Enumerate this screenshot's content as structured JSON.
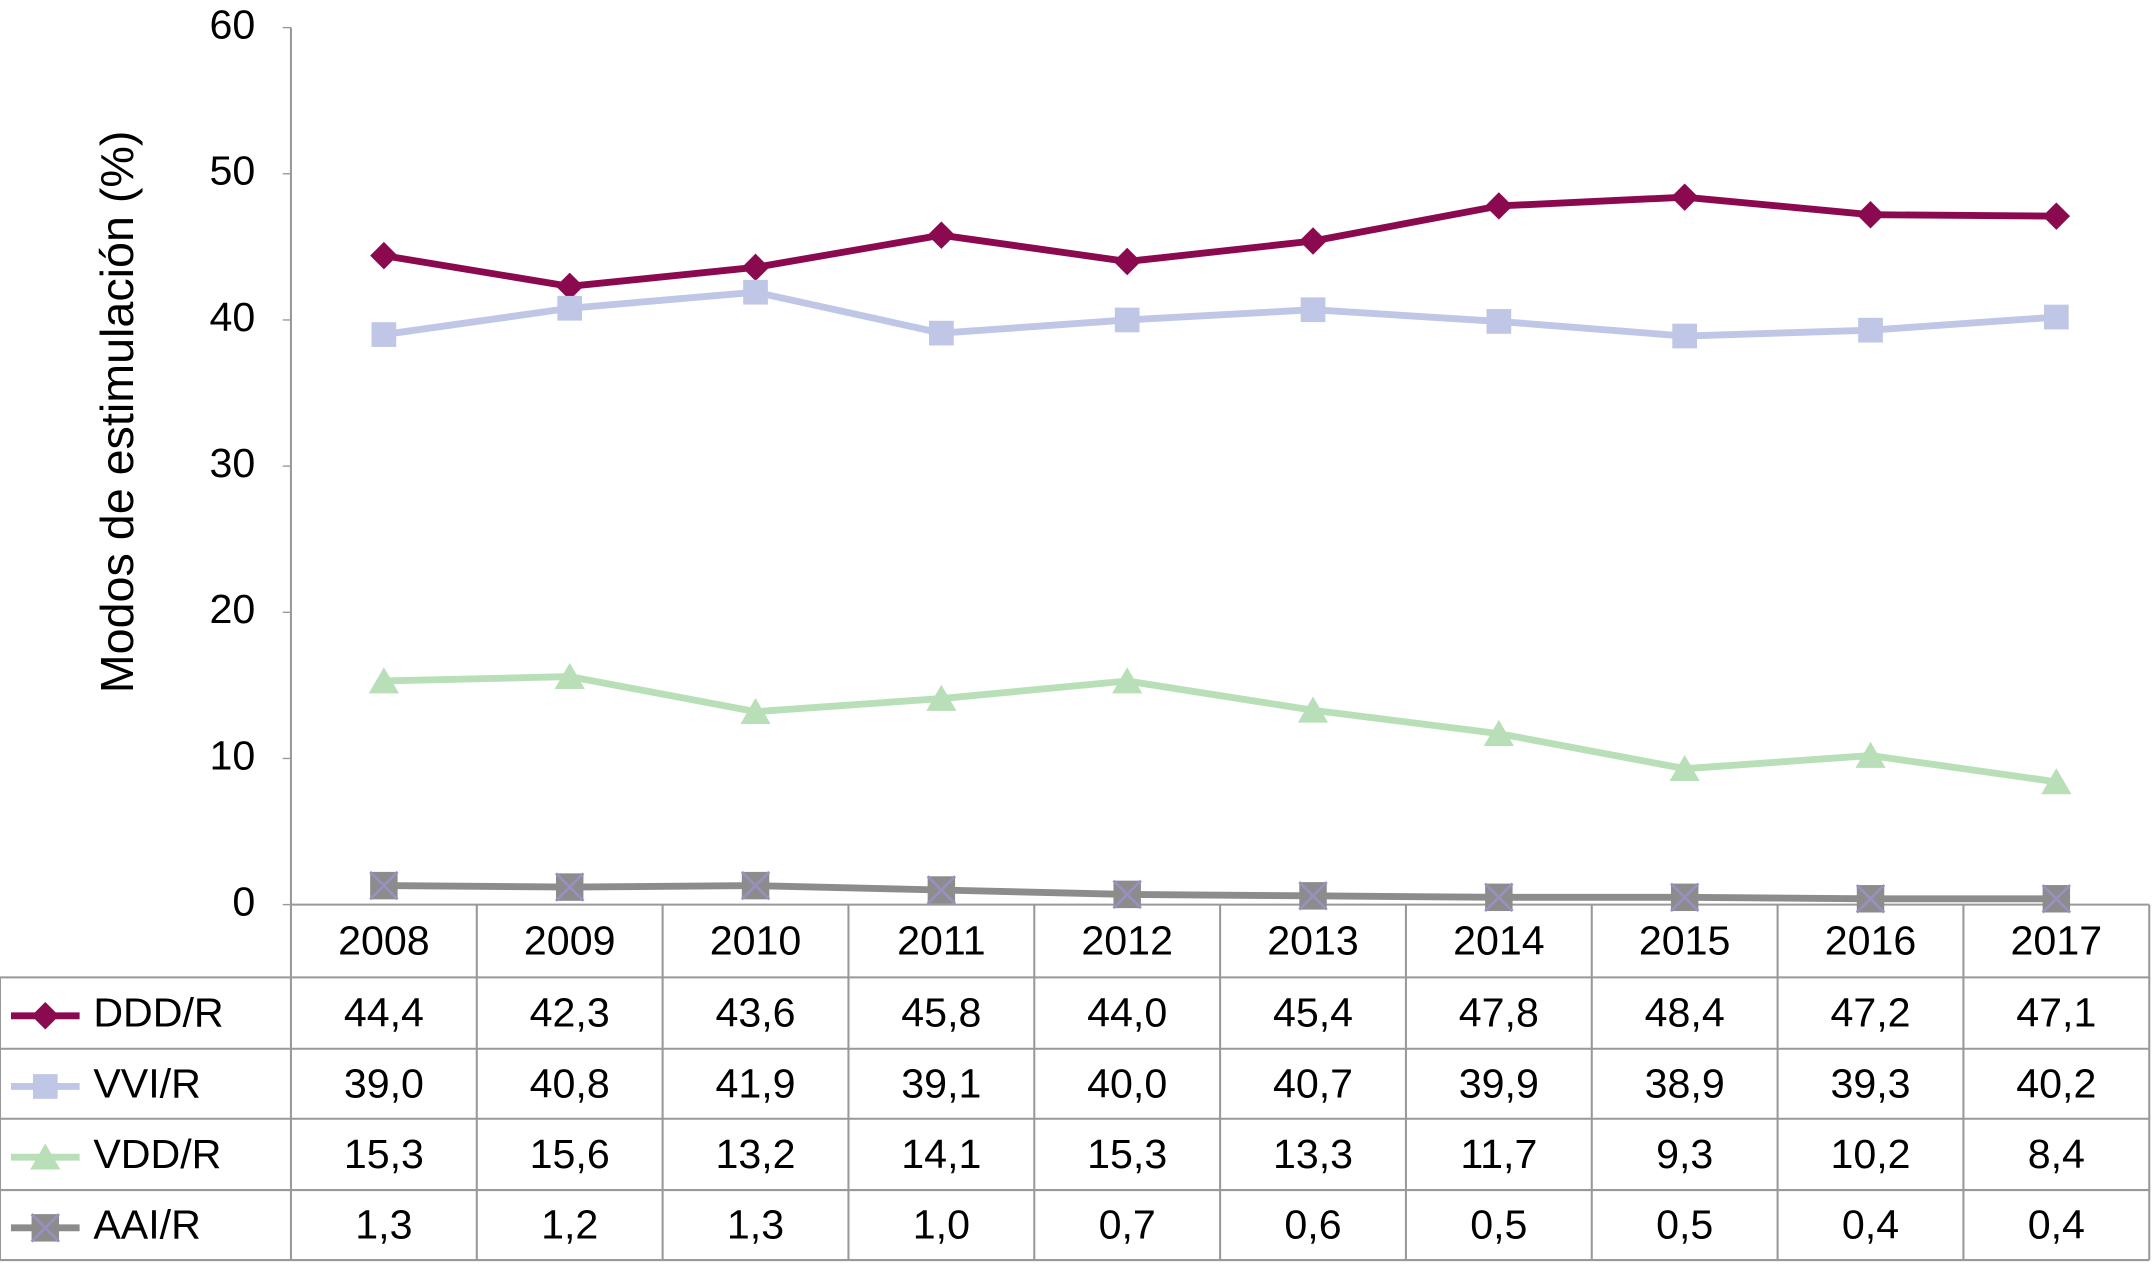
{
  "chart_data": {
    "type": "line",
    "y_label": "Modos de estimulación (%)",
    "categories": [
      "2008",
      "2009",
      "2010",
      "2011",
      "2012",
      "2013",
      "2014",
      "2015",
      "2016",
      "2017"
    ],
    "ylim": [
      0,
      60
    ],
    "yticks": [
      0,
      10,
      20,
      30,
      40,
      50,
      60
    ],
    "grid": false,
    "series": [
      {
        "name": "DDD/R",
        "color": "#8b0a4f",
        "marker": "diamond",
        "values": [
          44.4,
          42.3,
          43.6,
          45.8,
          44.0,
          45.4,
          47.8,
          48.4,
          47.2,
          47.1
        ],
        "value_labels": [
          "44,4",
          "42,3",
          "43,6",
          "45,8",
          "44,0",
          "45,4",
          "47,8",
          "48,4",
          "47,2",
          "47,1"
        ]
      },
      {
        "name": "VVI/R",
        "color": "#c0c6e6",
        "marker": "square",
        "values": [
          39.0,
          40.8,
          41.9,
          39.1,
          40.0,
          40.7,
          39.9,
          38.9,
          39.3,
          40.2
        ],
        "value_labels": [
          "39,0",
          "40,8",
          "41,9",
          "39,1",
          "40,0",
          "40,7",
          "39,9",
          "38,9",
          "39,3",
          "40,2"
        ]
      },
      {
        "name": "VDD/R",
        "color": "#b9dfb9",
        "marker": "triangle",
        "values": [
          15.3,
          15.6,
          13.2,
          14.1,
          15.3,
          13.3,
          11.7,
          9.3,
          10.2,
          8.4
        ],
        "value_labels": [
          "15,3",
          "15,6",
          "13,2",
          "14,1",
          "15,3",
          "13,3",
          "11,7",
          "9,3",
          "10,2",
          "8,4"
        ]
      },
      {
        "name": "AAI/R",
        "color": "#8c8c8c",
        "marker": "x",
        "values": [
          1.3,
          1.2,
          1.3,
          1.0,
          0.7,
          0.6,
          0.5,
          0.5,
          0.4,
          0.4
        ],
        "value_labels": [
          "1,3",
          "1,2",
          "1,3",
          "1,0",
          "0,7",
          "0,6",
          "0,5",
          "0,5",
          "0,4",
          "0,4"
        ]
      }
    ]
  }
}
